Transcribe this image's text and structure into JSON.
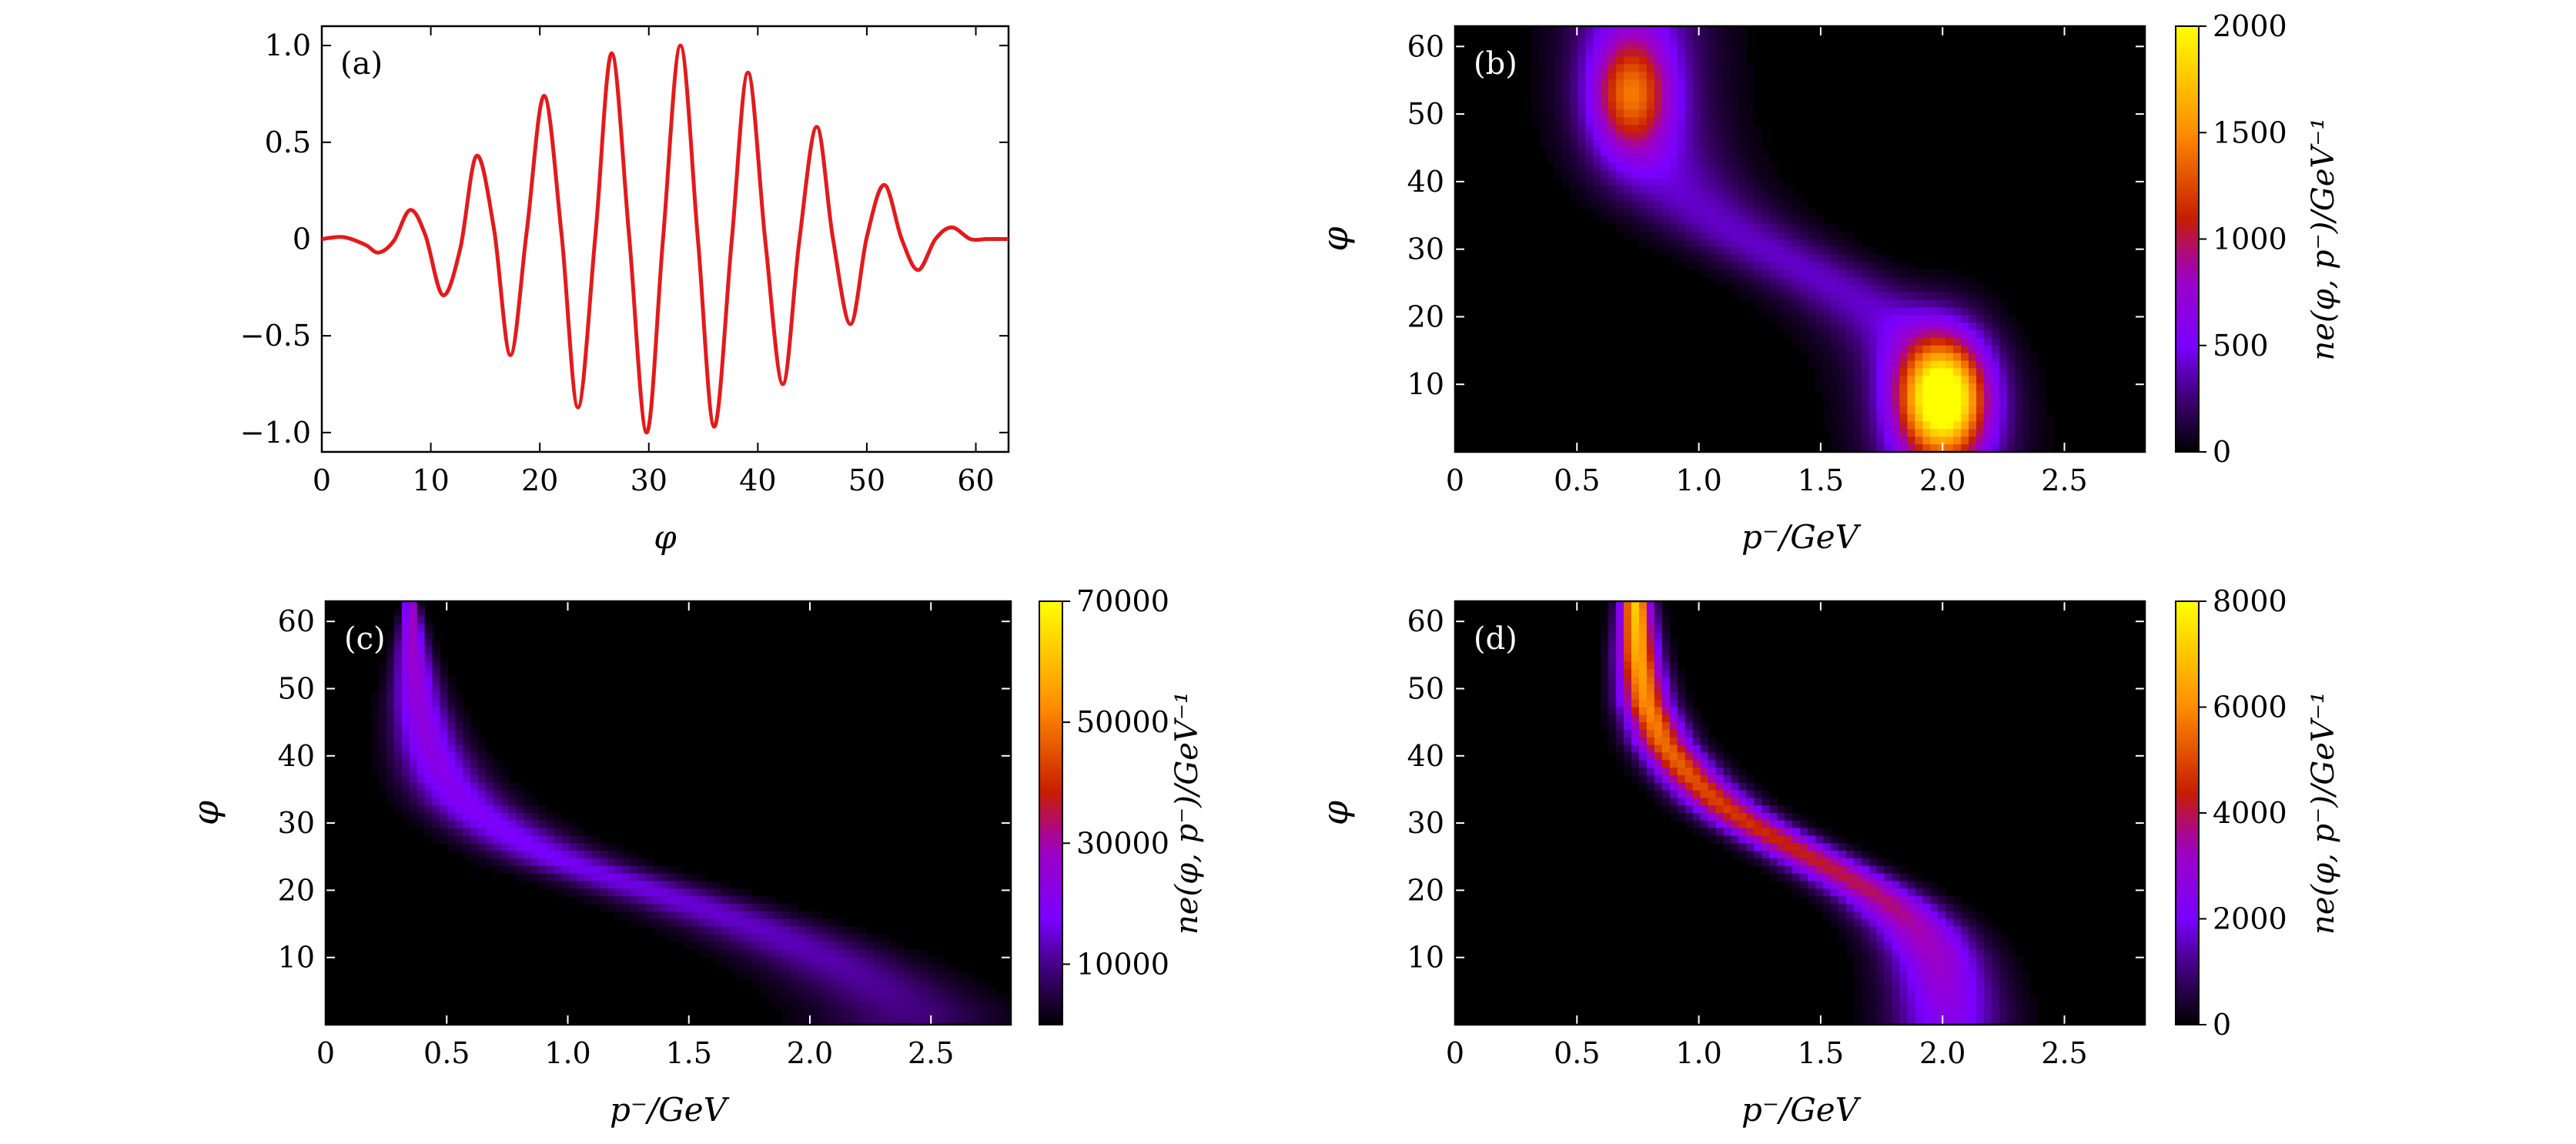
{
  "figure": {
    "layout": "2x2 grid",
    "panels_order": [
      "a",
      "b",
      "c",
      "d"
    ]
  },
  "colormap": [
    "#000000",
    "#3a006e",
    "#7a00ff",
    "#a000c0",
    "#c81e00",
    "#ff8c00",
    "#ffff00"
  ],
  "chart_data": [
    {
      "id": "a",
      "type": "line",
      "label": "(a)",
      "xlabel": "φ",
      "ylabel": "",
      "xlim": [
        0,
        63
      ],
      "ylim": [
        -1.1,
        1.1
      ],
      "xticks": [
        0,
        10,
        20,
        30,
        40,
        50,
        60
      ],
      "xtick_labels": [
        "0",
        "10",
        "20",
        "30",
        "40",
        "50",
        "60"
      ],
      "yticks": [
        -1.0,
        -0.5,
        0,
        0.5,
        1.0
      ],
      "ytick_labels": [
        "−1.0",
        "−0.5",
        "0",
        "0.5",
        "1.0"
      ],
      "line_color": "#e31a1c",
      "series": [
        {
          "name": "pulse",
          "x": [
            0,
            2,
            4,
            5.2,
            6.6,
            8.1,
            9.5,
            11.1,
            12.7,
            14.2,
            15.8,
            17.3,
            18.8,
            20.4,
            22.0,
            23.5,
            25.1,
            26.6,
            28.2,
            29.8,
            31.3,
            32.9,
            34.5,
            36.0,
            37.6,
            39.1,
            40.7,
            42.3,
            43.8,
            45.4,
            46.9,
            48.5,
            50.0,
            51.6,
            53.2,
            54.7,
            56.3,
            57.8,
            59.5,
            61.0,
            63.0
          ],
          "y": [
            0,
            0.01,
            -0.03,
            -0.07,
            -0.01,
            0.15,
            0.02,
            -0.29,
            -0.05,
            0.43,
            0.05,
            -0.6,
            0.04,
            0.74,
            0.02,
            -0.87,
            0.02,
            0.96,
            0.01,
            -1.0,
            0.0,
            1.0,
            0.0,
            -0.97,
            -0.01,
            0.86,
            -0.02,
            -0.75,
            -0.01,
            0.58,
            0.0,
            -0.44,
            0.01,
            0.28,
            0.0,
            -0.16,
            0.0,
            0.06,
            0.0,
            0.0,
            0.0
          ]
        }
      ]
    },
    {
      "id": "b",
      "type": "heatmap",
      "label": "(b)",
      "xlabel": "p⁻/GeV",
      "ylabel": "φ",
      "xlim": [
        0,
        2.83
      ],
      "ylim": [
        0,
        63
      ],
      "xticks": [
        0,
        0.5,
        1.0,
        1.5,
        2.0,
        2.5
      ],
      "xtick_labels": [
        "0",
        "0.5",
        "1.0",
        "1.5",
        "2.0",
        "2.5"
      ],
      "yticks": [
        10,
        20,
        30,
        40,
        50,
        60
      ],
      "ytick_labels": [
        "10",
        "20",
        "30",
        "40",
        "50",
        "60"
      ],
      "colorbar": {
        "label": "ne(φ, p⁻)/GeV⁻¹",
        "range": [
          0,
          2000
        ],
        "ticks": [
          0,
          500,
          1000,
          1500,
          2000
        ],
        "tick_labels": [
          "0",
          "500",
          "1000",
          "1500",
          "2000"
        ]
      },
      "ridge": {
        "p_low": 0.75,
        "p_high": 2.0,
        "phi_center": 28,
        "phi_width": 6,
        "ridge_sigma_p": 0.28,
        "ridge_level": 400
      },
      "hotspots": [
        {
          "p": 2.0,
          "phi": 8,
          "sigma_p": 0.18,
          "sigma_phi": 9,
          "value": 2000
        },
        {
          "p": 0.72,
          "phi": 53,
          "sigma_p": 0.16,
          "sigma_phi": 9,
          "value": 1050
        }
      ]
    },
    {
      "id": "c",
      "type": "heatmap",
      "label": "(c)",
      "xlabel": "p⁻/GeV",
      "ylabel": "φ",
      "xlim": [
        0,
        2.83
      ],
      "ylim": [
        0,
        63
      ],
      "xticks": [
        0,
        0.5,
        1.0,
        1.5,
        2.0,
        2.5
      ],
      "xtick_labels": [
        "0",
        "0.5",
        "1.0",
        "1.5",
        "2.0",
        "2.5"
      ],
      "yticks": [
        10,
        20,
        30,
        40,
        50,
        60
      ],
      "ytick_labels": [
        "10",
        "20",
        "30",
        "40",
        "50",
        "60"
      ],
      "colorbar": {
        "label": "ne(φ, p⁻)/GeV⁻¹",
        "range": [
          0,
          70000
        ],
        "ticks": [
          10000,
          30000,
          50000,
          70000
        ],
        "tick_labels": [
          "10000",
          "30000",
          "50000",
          "70000"
        ]
      },
      "curve": {
        "phi": [
          63,
          55,
          48,
          42,
          37,
          33,
          30,
          27,
          24,
          21,
          18,
          14,
          10,
          6,
          2
        ],
        "p": [
          0.35,
          0.36,
          0.38,
          0.42,
          0.48,
          0.57,
          0.68,
          0.82,
          1.0,
          1.25,
          1.5,
          1.8,
          2.05,
          2.25,
          2.4
        ],
        "value_top": 30000,
        "value_bottom": 9000,
        "width_top": 0.025,
        "width_bottom": 0.35
      }
    },
    {
      "id": "d",
      "type": "heatmap",
      "label": "(d)",
      "xlabel": "p⁻/GeV",
      "ylabel": "φ",
      "xlim": [
        0,
        2.83
      ],
      "ylim": [
        0,
        63
      ],
      "xticks": [
        0,
        0.5,
        1.0,
        1.5,
        2.0,
        2.5
      ],
      "xtick_labels": [
        "0",
        "0.5",
        "1.0",
        "1.5",
        "2.0",
        "2.5"
      ],
      "yticks": [
        10,
        20,
        30,
        40,
        50,
        60
      ],
      "ytick_labels": [
        "10",
        "20",
        "30",
        "40",
        "50",
        "60"
      ],
      "colorbar": {
        "label": "ne(φ, p⁻)/GeV⁻¹",
        "range": [
          0,
          8000
        ],
        "ticks": [
          0,
          2000,
          4000,
          6000,
          8000
        ],
        "tick_labels": [
          "0",
          "2000",
          "4000",
          "6000",
          "8000"
        ]
      },
      "curve": {
        "phi": [
          63,
          55,
          48,
          42,
          37,
          33,
          30,
          27,
          24,
          21,
          18,
          14,
          10,
          6,
          2
        ],
        "p": [
          0.74,
          0.75,
          0.78,
          0.85,
          0.96,
          1.08,
          1.2,
          1.35,
          1.5,
          1.65,
          1.78,
          1.9,
          1.97,
          2.0,
          2.02
        ],
        "value_top": 7200,
        "value_bottom": 2400,
        "width_top": 0.06,
        "width_bottom": 0.22
      }
    }
  ]
}
